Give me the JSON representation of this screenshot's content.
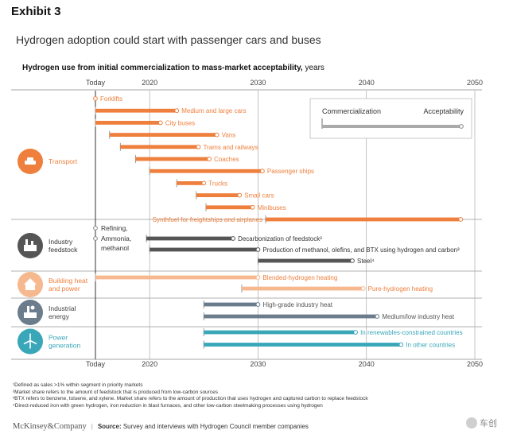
{
  "exhibit": "Exhibit 3",
  "headline": "Hydrogen adoption could start with passenger cars and buses",
  "chart_data": {
    "type": "bar",
    "title_bold": "Hydrogen use from initial commercialization to mass-market acceptability,",
    "title_rest": " years",
    "xlim": [
      2015,
      2050
    ],
    "ticks": [
      {
        "value": 2015,
        "label": "Today"
      },
      {
        "value": 2020,
        "label": "2020"
      },
      {
        "value": 2030,
        "label": "2030"
      },
      {
        "value": 2040,
        "label": "2040"
      },
      {
        "value": 2050,
        "label": "2050"
      }
    ],
    "legend": {
      "commercialization": "Commercialization",
      "acceptability": "Acceptability"
    },
    "sectors": [
      {
        "key": "transport",
        "label": "Transport",
        "icon": "car-icon",
        "color": "#ee7f3d",
        "rows": 11
      },
      {
        "key": "industry",
        "label": "Industry feedstock",
        "icon": "factory-icon",
        "color": "#555555",
        "rows": 5
      },
      {
        "key": "building",
        "label": "Building heat and power",
        "icon": "house-icon",
        "color": "#f6b88f",
        "rows": 2
      },
      {
        "key": "energy",
        "label": "Industrial energy",
        "icon": "plant-icon",
        "color": "#6b7d8c",
        "rows": 2
      },
      {
        "key": "power",
        "label": "Power generation",
        "icon": "wind-turbine-icon",
        "color": "#3aa7b9",
        "rows": 2
      }
    ],
    "series": [
      {
        "sector": "transport",
        "label": "Forklifts",
        "start": 2015,
        "end": 2015
      },
      {
        "sector": "transport",
        "label": "Medium and large cars",
        "start": 2015,
        "end": 2022.5
      },
      {
        "sector": "transport",
        "label": "City buses",
        "start": 2015,
        "end": 2021
      },
      {
        "sector": "transport",
        "label": "Vans",
        "start": 2016.3,
        "end": 2026.2
      },
      {
        "sector": "transport",
        "label": "Trams and railways",
        "start": 2017.3,
        "end": 2024.5
      },
      {
        "sector": "transport",
        "label": "Coaches",
        "start": 2018.7,
        "end": 2025.5
      },
      {
        "sector": "transport",
        "label": "Passenger ships",
        "start": 2020,
        "end": 2030.4
      },
      {
        "sector": "transport",
        "label": "Trucks",
        "start": 2022.5,
        "end": 2025
      },
      {
        "sector": "transport",
        "label": "Small cars",
        "start": 2024.3,
        "end": 2028.3
      },
      {
        "sector": "transport",
        "label": "Minibuses",
        "start": 2025.2,
        "end": 2029.5
      },
      {
        "sector": "transport",
        "label": "Synthfuel for freightships and airplanes",
        "start": 2030.7,
        "end": 2048.7
      },
      {
        "sector": "industry",
        "label": "Refining,",
        "start": 2015,
        "end": 2015
      },
      {
        "sector": "industry",
        "label": "Ammonia, methanol",
        "start": 2015,
        "end": 2015
      },
      {
        "sector": "industry",
        "label": "Decarbonization of feedstock²",
        "start": 2019.7,
        "end": 2027.7
      },
      {
        "sector": "industry",
        "label": "Production of methanol, olefins, and BTX using hydrogen and carbon³",
        "start": 2020,
        "end": 2030
      },
      {
        "sector": "industry",
        "label": "Steel⁴",
        "start": 2030,
        "end": 2038.7
      },
      {
        "sector": "building",
        "label": "Blended-hydrogen heating",
        "start": 2015,
        "end": 2030
      },
      {
        "sector": "building",
        "label": "Pure-hydrogen heating",
        "start": 2028.5,
        "end": 2039.7
      },
      {
        "sector": "energy",
        "label": "High-grade industry heat",
        "start": 2025,
        "end": 2030
      },
      {
        "sector": "energy",
        "label": "Medium/low industry heat",
        "start": 2025,
        "end": 2041
      },
      {
        "sector": "power",
        "label": "In renewables-constrained countries",
        "start": 2025,
        "end": 2039
      },
      {
        "sector": "power",
        "label": "In other countries",
        "start": 2025,
        "end": 2043.2
      }
    ]
  },
  "footnotes": [
    "¹Defined as sales >1% within segment in priority markets",
    "²Market share refers to the amount of feedstock that is produced from low-carbon sources",
    "³BTX refers to benzene, toluene, and xylene. Market share refers to the amount of production that uses hydrogen and captured carbon to replace feedstock",
    "⁴Direct-reduced iron with green hydrogen, iron reduction in blast furnaces, and other low-carbon steelmaking processes using hydrogen"
  ],
  "footer": {
    "brand": "McKinsey&Company",
    "source_label": "Source:",
    "source_text": " Survey and interviews with Hydrogen Council member companies"
  },
  "watermark": "车创"
}
